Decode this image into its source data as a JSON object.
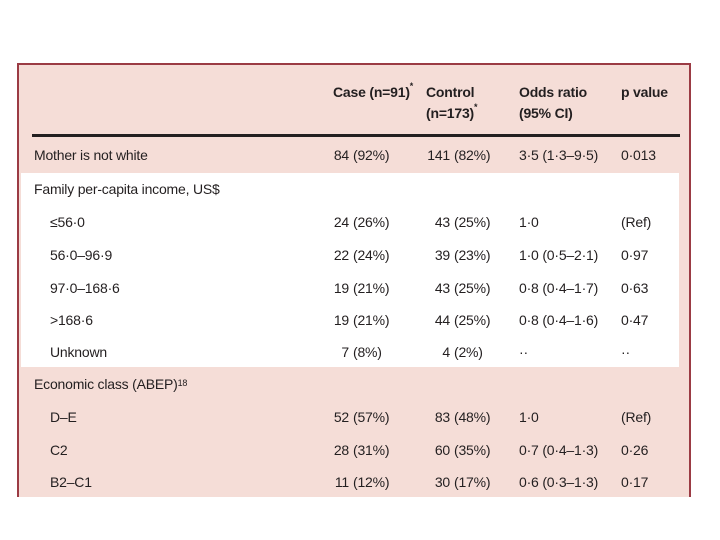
{
  "colors": {
    "page_background": "#ffffff",
    "panel_background": "#f5ddd7",
    "panel_border": "#9b3b44",
    "header_rule": "#231f20",
    "text": "#231f20",
    "income_band_background": "#ffffff"
  },
  "header": {
    "col_case": "Case (n=91)",
    "col_case_sup": "*",
    "col_control_line1": "Control",
    "col_control_line2": "(n=173)",
    "col_control_sup": "*",
    "col_odds_line1": "Odds ratio",
    "col_odds_line2": "(95% CI)",
    "col_p": "p value"
  },
  "rows": [
    {
      "label": "Mother is not white",
      "case_n": "84",
      "case_pct": "(92%)",
      "control_n": "141",
      "control_pct": "(82%)",
      "odds": "3·5 (1·3–9·5)",
      "p": "0·013"
    },
    {
      "label": "Family per-capita income, US$",
      "section": true
    },
    {
      "label": "≤56·0",
      "case_n": "24",
      "case_pct": "(26%)",
      "control_n": "43",
      "control_pct": "(25%)",
      "odds": "1·0",
      "p": "(Ref)"
    },
    {
      "label": "56·0–96·9",
      "case_n": "22",
      "case_pct": "(24%)",
      "control_n": "39",
      "control_pct": "(23%)",
      "odds": "1·0 (0·5–2·1)",
      "p": "0·97"
    },
    {
      "label": "97·0–168·6",
      "case_n": "19",
      "case_pct": "(21%)",
      "control_n": "43",
      "control_pct": "(25%)",
      "odds": "0·8 (0·4–1·7)",
      "p": "0·63"
    },
    {
      "label": ">168·6",
      "case_n": "19",
      "case_pct": "(21%)",
      "control_n": "44",
      "control_pct": "(25%)",
      "odds": "0·8 (0·4–1·6)",
      "p": "0·47"
    },
    {
      "label": "Unknown",
      "case_n": "7",
      "case_pct": "(8%)",
      "control_n": "4",
      "control_pct": "(2%)",
      "odds": "··",
      "p": "··"
    },
    {
      "label": "Economic class (ABEP)",
      "label_sup": "18",
      "section": true
    },
    {
      "label": "D–E",
      "case_n": "52",
      "case_pct": "(57%)",
      "control_n": "83",
      "control_pct": "(48%)",
      "odds": "1·0",
      "p": "(Ref)"
    },
    {
      "label": "C2",
      "case_n": "28",
      "case_pct": "(31%)",
      "control_n": "60",
      "control_pct": "(35%)",
      "odds": "0·7 (0·4–1·3)",
      "p": "0·26"
    },
    {
      "label": "B2–C1",
      "case_n": "11",
      "case_pct": "(12%)",
      "control_n": "30",
      "control_pct": "(17%)",
      "odds": "0·6 (0·3–1·3)",
      "p": "0·17"
    }
  ]
}
